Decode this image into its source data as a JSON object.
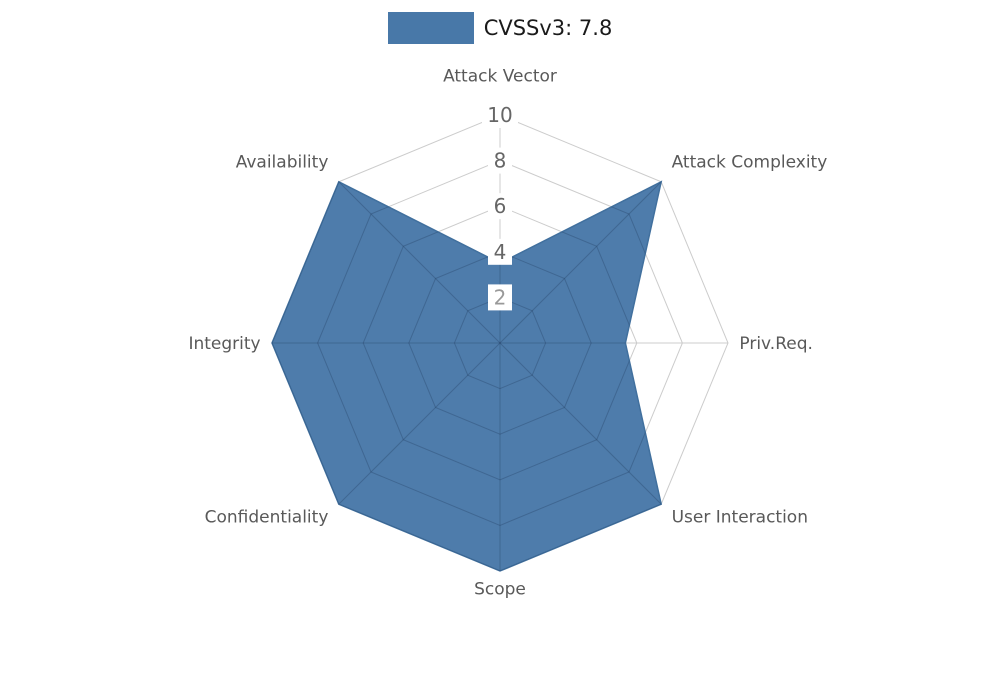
{
  "legend": {
    "label": "CVSSv3: 7.8",
    "swatch_color": "#4878a8"
  },
  "chart_data": {
    "type": "radar",
    "title": "CVSSv3: 7.8",
    "series_name": "CVSSv3: 7.8",
    "categories": [
      "Attack Vector",
      "Attack Complexity",
      "Priv.Req.",
      "User Interaction",
      "Scope",
      "Confidentiality",
      "Integrity",
      "Availability"
    ],
    "values": [
      3.5,
      10,
      5.5,
      10,
      10,
      10,
      10,
      10
    ],
    "ticks": [
      2,
      4,
      6,
      8,
      10
    ],
    "axis_range": [
      0,
      10
    ],
    "grid": true,
    "legend_position": "top",
    "colors": {
      "fill": "#4878a8",
      "stroke": "#41709e",
      "grid": "#cccccc",
      "inner_grid": "rgba(25, 45, 75, 0.25)",
      "axis_label": "#595959",
      "tick_label": "#666666",
      "tick_label_innermost": "#999999",
      "tick_backdrop": "#ffffff",
      "legend_text": "#1a1a1a"
    }
  }
}
